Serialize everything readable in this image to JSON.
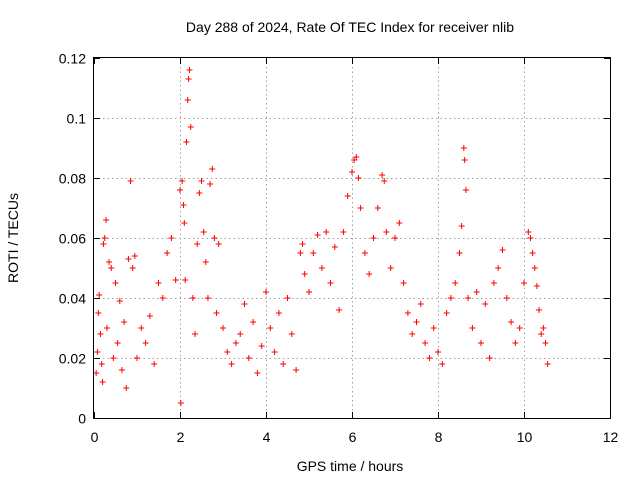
{
  "chart_data": {
    "type": "scatter",
    "title": "Day 288 of 2024, Rate Of TEC Index for receiver nlib",
    "xlabel": "GPS time / hours",
    "ylabel": "ROTI / TECUs",
    "xlim": [
      0,
      12
    ],
    "ylim": [
      0,
      0.12
    ],
    "xticks": [
      0,
      2,
      4,
      6,
      8,
      10,
      12
    ],
    "yticks": [
      0,
      0.02,
      0.04,
      0.06,
      0.08,
      0.1,
      0.12
    ],
    "xtick_labels": [
      "0",
      "2",
      "4",
      "6",
      "8",
      "10",
      "12"
    ],
    "ytick_labels": [
      "0",
      "0.02",
      "0.04",
      "0.06",
      "0.08",
      "0.1",
      "0.12"
    ],
    "grid": true,
    "marker": "+",
    "color": "#ff0000",
    "series": [
      {
        "name": "ROTI",
        "points": [
          [
            0.05,
            0.015
          ],
          [
            0.08,
            0.022
          ],
          [
            0.1,
            0.035
          ],
          [
            0.12,
            0.041
          ],
          [
            0.15,
            0.028
          ],
          [
            0.18,
            0.018
          ],
          [
            0.2,
            0.012
          ],
          [
            0.22,
            0.058
          ],
          [
            0.25,
            0.06
          ],
          [
            0.28,
            0.066
          ],
          [
            0.3,
            0.03
          ],
          [
            0.35,
            0.052
          ],
          [
            0.4,
            0.05
          ],
          [
            0.45,
            0.02
          ],
          [
            0.5,
            0.045
          ],
          [
            0.55,
            0.025
          ],
          [
            0.6,
            0.039
          ],
          [
            0.65,
            0.016
          ],
          [
            0.7,
            0.032
          ],
          [
            0.75,
            0.01
          ],
          [
            0.8,
            0.053
          ],
          [
            0.85,
            0.079
          ],
          [
            0.9,
            0.05
          ],
          [
            0.95,
            0.054
          ],
          [
            1.0,
            0.02
          ],
          [
            1.1,
            0.03
          ],
          [
            1.2,
            0.025
          ],
          [
            1.3,
            0.034
          ],
          [
            1.4,
            0.018
          ],
          [
            1.5,
            0.045
          ],
          [
            1.6,
            0.04
          ],
          [
            1.7,
            0.055
          ],
          [
            1.8,
            0.06
          ],
          [
            1.9,
            0.046
          ],
          [
            2.0,
            0.076
          ],
          [
            2.02,
            0.005
          ],
          [
            2.05,
            0.079
          ],
          [
            2.08,
            0.071
          ],
          [
            2.1,
            0.065
          ],
          [
            2.12,
            0.046
          ],
          [
            2.15,
            0.092
          ],
          [
            2.18,
            0.106
          ],
          [
            2.2,
            0.113
          ],
          [
            2.22,
            0.116
          ],
          [
            2.25,
            0.097
          ],
          [
            2.3,
            0.04
          ],
          [
            2.35,
            0.028
          ],
          [
            2.4,
            0.058
          ],
          [
            2.45,
            0.075
          ],
          [
            2.5,
            0.079
          ],
          [
            2.55,
            0.062
          ],
          [
            2.6,
            0.052
          ],
          [
            2.65,
            0.04
          ],
          [
            2.7,
            0.078
          ],
          [
            2.75,
            0.083
          ],
          [
            2.8,
            0.06
          ],
          [
            2.85,
            0.035
          ],
          [
            2.9,
            0.058
          ],
          [
            3.0,
            0.03
          ],
          [
            3.1,
            0.022
          ],
          [
            3.2,
            0.018
          ],
          [
            3.3,
            0.025
          ],
          [
            3.4,
            0.028
          ],
          [
            3.5,
            0.038
          ],
          [
            3.6,
            0.02
          ],
          [
            3.7,
            0.032
          ],
          [
            3.8,
            0.015
          ],
          [
            3.9,
            0.024
          ],
          [
            4.0,
            0.042
          ],
          [
            4.1,
            0.03
          ],
          [
            4.2,
            0.022
          ],
          [
            4.3,
            0.035
          ],
          [
            4.4,
            0.018
          ],
          [
            4.5,
            0.04
          ],
          [
            4.6,
            0.028
          ],
          [
            4.7,
            0.016
          ],
          [
            4.8,
            0.055
          ],
          [
            4.85,
            0.058
          ],
          [
            4.9,
            0.048
          ],
          [
            5.0,
            0.042
          ],
          [
            5.1,
            0.055
          ],
          [
            5.2,
            0.061
          ],
          [
            5.3,
            0.05
          ],
          [
            5.4,
            0.062
          ],
          [
            5.5,
            0.045
          ],
          [
            5.6,
            0.057
          ],
          [
            5.7,
            0.036
          ],
          [
            5.8,
            0.062
          ],
          [
            5.9,
            0.074
          ],
          [
            6.0,
            0.082
          ],
          [
            6.05,
            0.086
          ],
          [
            6.1,
            0.087
          ],
          [
            6.15,
            0.08
          ],
          [
            6.2,
            0.07
          ],
          [
            6.3,
            0.055
          ],
          [
            6.4,
            0.048
          ],
          [
            6.5,
            0.06
          ],
          [
            6.6,
            0.07
          ],
          [
            6.7,
            0.081
          ],
          [
            6.75,
            0.079
          ],
          [
            6.8,
            0.062
          ],
          [
            6.9,
            0.05
          ],
          [
            7.0,
            0.06
          ],
          [
            7.1,
            0.065
          ],
          [
            7.2,
            0.045
          ],
          [
            7.3,
            0.035
          ],
          [
            7.4,
            0.028
          ],
          [
            7.5,
            0.032
          ],
          [
            7.6,
            0.038
          ],
          [
            7.7,
            0.025
          ],
          [
            7.8,
            0.02
          ],
          [
            7.9,
            0.03
          ],
          [
            8.0,
            0.022
          ],
          [
            8.1,
            0.018
          ],
          [
            8.2,
            0.035
          ],
          [
            8.3,
            0.04
          ],
          [
            8.4,
            0.045
          ],
          [
            8.5,
            0.055
          ],
          [
            8.55,
            0.064
          ],
          [
            8.6,
            0.09
          ],
          [
            8.62,
            0.086
          ],
          [
            8.65,
            0.076
          ],
          [
            8.7,
            0.04
          ],
          [
            8.8,
            0.03
          ],
          [
            8.9,
            0.042
          ],
          [
            9.0,
            0.025
          ],
          [
            9.1,
            0.038
          ],
          [
            9.2,
            0.02
          ],
          [
            9.3,
            0.045
          ],
          [
            9.4,
            0.05
          ],
          [
            9.5,
            0.056
          ],
          [
            9.6,
            0.04
          ],
          [
            9.7,
            0.032
          ],
          [
            9.8,
            0.025
          ],
          [
            9.9,
            0.03
          ],
          [
            10.0,
            0.045
          ],
          [
            10.1,
            0.062
          ],
          [
            10.15,
            0.06
          ],
          [
            10.2,
            0.055
          ],
          [
            10.25,
            0.05
          ],
          [
            10.3,
            0.044
          ],
          [
            10.35,
            0.036
          ],
          [
            10.4,
            0.028
          ],
          [
            10.45,
            0.03
          ],
          [
            10.5,
            0.025
          ],
          [
            10.55,
            0.018
          ]
        ]
      }
    ]
  }
}
